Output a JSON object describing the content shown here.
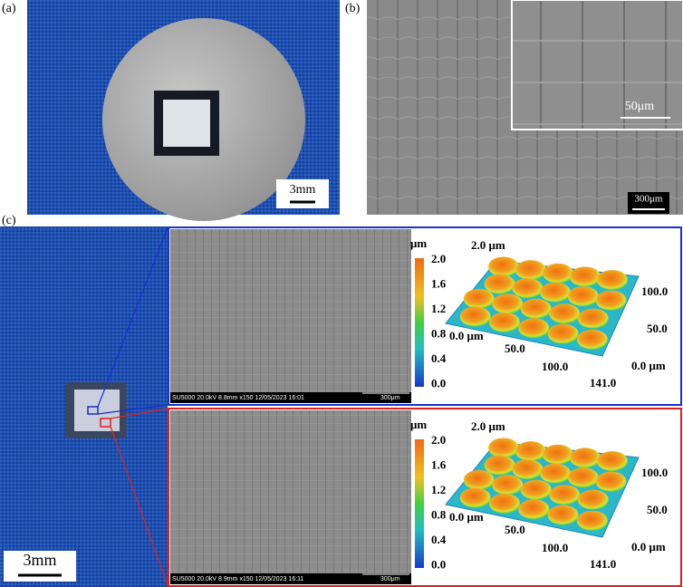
{
  "panels": {
    "a": {
      "label": "(a)",
      "scale_bar": "3mm"
    },
    "b": {
      "label": "(b)",
      "inset_scale_bar": "50μm",
      "scale_bar": "300μm"
    },
    "c": {
      "label": "(c)",
      "scale_bar": "3mm",
      "rows": [
        {
          "sem_info": "SU5000 20.0kV 8.8mm x150 12/05/2023 16:01",
          "sem_scale": "300μm",
          "colorbar_unit": "μm",
          "colorbar_ticks": [
            "2.0",
            "1.6",
            "1.2",
            "0.8",
            "0.4",
            "0.0"
          ],
          "z_label": "2.0 μm",
          "x_labels": [
            "0.0 μm",
            "50.0",
            "100.0",
            "141.0"
          ],
          "y_labels": [
            "100.0",
            "50.0",
            "0.0 μm"
          ]
        },
        {
          "sem_info": "SU5000 20.0kV 8.9mm x150 12/05/2023 16:11",
          "sem_scale": "300μm",
          "colorbar_unit": "μm",
          "colorbar_ticks": [
            "2.0",
            "1.6",
            "1.2",
            "0.8",
            "0.4",
            "0.0"
          ],
          "z_label": "2.0 μm",
          "x_labels": [
            "0.0 μm",
            "50.0",
            "100.0",
            "141.0"
          ],
          "y_labels": [
            "100.0",
            "50.0",
            "0.0 μm"
          ]
        }
      ]
    }
  }
}
